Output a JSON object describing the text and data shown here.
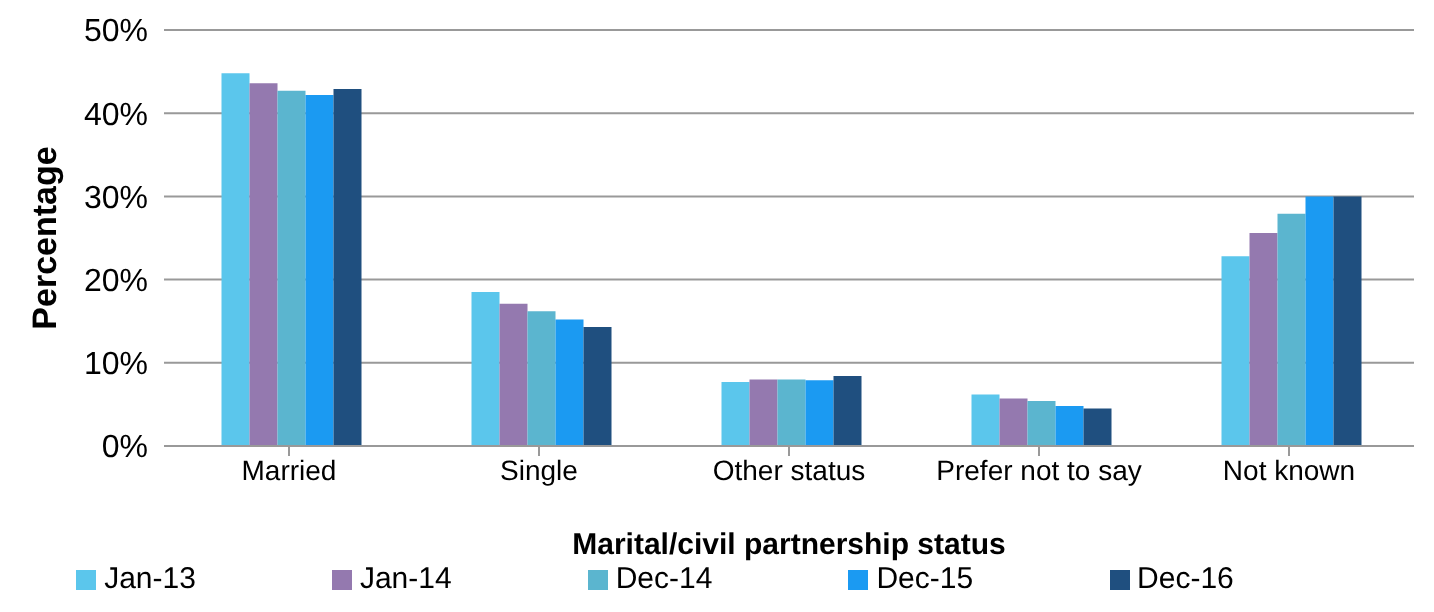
{
  "chart_data": {
    "type": "bar",
    "xlabel": "Marital/civil partnership status",
    "ylabel": "Percentage",
    "categories": [
      "Married",
      "Single",
      "Other status",
      "Prefer not to say",
      "Not known"
    ],
    "series": [
      {
        "name": "Jan-13",
        "color": "#5bc6ec",
        "values": [
          44.8,
          18.5,
          7.7,
          6.2,
          22.8
        ]
      },
      {
        "name": "Jan-14",
        "color": "#9479af",
        "values": [
          43.6,
          17.1,
          8.0,
          5.7,
          25.6
        ]
      },
      {
        "name": "Dec-14",
        "color": "#5bb5cf",
        "values": [
          42.7,
          16.2,
          8.0,
          5.4,
          27.9
        ]
      },
      {
        "name": "Dec-15",
        "color": "#1b9af2",
        "values": [
          42.2,
          15.2,
          7.9,
          4.8,
          30.0
        ]
      },
      {
        "name": "Dec-16",
        "color": "#1f4f7f",
        "values": [
          42.9,
          14.3,
          8.4,
          4.5,
          30.0
        ]
      }
    ],
    "ylim": [
      0,
      50
    ],
    "yticks": [
      {
        "value": 0,
        "label": "0%"
      },
      {
        "value": 10,
        "label": "10%"
      },
      {
        "value": 20,
        "label": "20%"
      },
      {
        "value": 30,
        "label": "30%"
      },
      {
        "value": 40,
        "label": "40%"
      },
      {
        "value": 50,
        "label": "50%"
      }
    ],
    "grid": "y",
    "legend": "bottom"
  }
}
